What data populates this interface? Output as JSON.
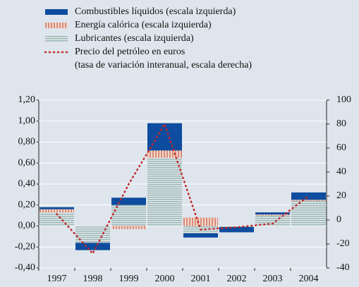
{
  "chart_data": {
    "type": "bar",
    "categories": [
      "1997",
      "1998",
      "1999",
      "2000",
      "2001",
      "2002",
      "2003",
      "2004"
    ],
    "series": [
      {
        "name": "Combustibles líquidos (escala izquierda)",
        "color": "#0d4c9e",
        "values": [
          0.02,
          -0.07,
          0.07,
          0.26,
          -0.04,
          -0.05,
          0.02,
          0.07
        ]
      },
      {
        "name": "Energía calórica (escala izquierda)",
        "color": "#d98c78",
        "values": [
          0.03,
          0,
          -0.03,
          0.07,
          0.08,
          0,
          0.01,
          0.01
        ]
      },
      {
        "name": "Lubricantes (escala izquierda)",
        "color": "#9fb6b8",
        "values": [
          0.13,
          -0.16,
          0.2,
          0.65,
          -0.07,
          -0.01,
          0.1,
          0.24
        ]
      },
      {
        "name": "Precio del petróleo en euros",
        "note": "(tasa de variación interanual, escala derecha)",
        "color": "#c0282d",
        "type": "line",
        "axis": "y2",
        "values": [
          5,
          -28,
          30,
          80,
          -8,
          -6,
          -3,
          20
        ]
      }
    ],
    "ylim": [
      -0.4,
      1.2
    ],
    "yticks": [
      {
        "value": -0.4,
        "label": "-0,40"
      },
      {
        "value": -0.2,
        "label": "-0,20"
      },
      {
        "value": 0,
        "label": "0,00"
      },
      {
        "value": 0.2,
        "label": "0,20"
      },
      {
        "value": 0.4,
        "label": "0,40"
      },
      {
        "value": 0.6,
        "label": "0,60"
      },
      {
        "value": 0.8,
        "label": "0,80"
      },
      {
        "value": 1.0,
        "label": "1,00"
      },
      {
        "value": 1.2,
        "label": "1,20"
      }
    ],
    "y2lim": [
      -40,
      100
    ],
    "y2ticks": [
      -40,
      -20,
      0,
      20,
      40,
      60,
      80,
      100
    ],
    "grid": true
  }
}
